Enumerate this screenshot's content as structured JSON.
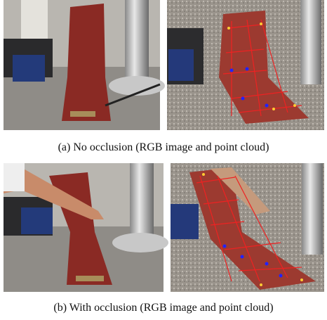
{
  "figure": {
    "subfigures": [
      {
        "caption": "(a) No occlusion (RGB image and point cloud)"
      },
      {
        "caption": "(b) With occlusion (RGB image and point cloud)"
      }
    ]
  }
}
